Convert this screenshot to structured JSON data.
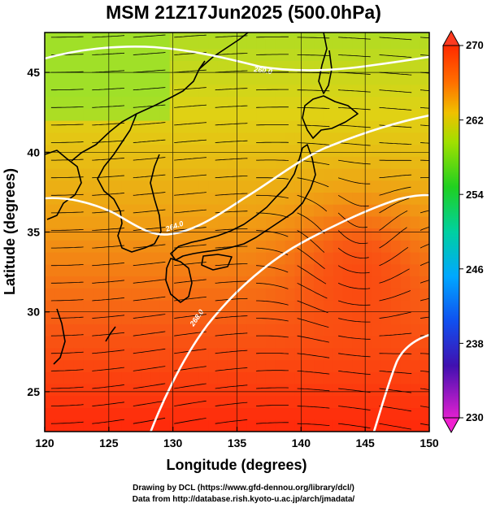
{
  "title": "MSM 21Z17Jun2025 (500.0hPa)",
  "chart_data": {
    "type": "heatmap",
    "title": "MSM 21Z17Jun2025 (500.0hPa)",
    "xlabel": "Longitude (degrees)",
    "ylabel": "Latitude  (degrees)",
    "xlim": [
      120,
      150
    ],
    "ylim": [
      22.5,
      47.5
    ],
    "x_ticks": [
      "120",
      "125",
      "130",
      "135",
      "140",
      "145",
      "150"
    ],
    "y_ticks": [
      "25",
      "30",
      "35",
      "40",
      "45"
    ],
    "grid": true,
    "colorbar": {
      "min": 230,
      "max": 270,
      "ticks": [
        "270",
        "262",
        "254",
        "246",
        "238",
        "230"
      ],
      "placement": "right"
    },
    "contour_labels": [
      "260.0",
      "264.0",
      "268.0"
    ],
    "overlays": [
      "streamlines",
      "coastlines",
      "contours"
    ]
  },
  "credits": {
    "line1": "Drawing by DCL (https://www.gfd-dennou.org/library/dcl/)",
    "line2": "Data from http://database.rish.kyoto-u.ac.jp/arch/jmadata/"
  },
  "colors": {
    "cold": "#a8e000",
    "mid": "#f0a010",
    "warm": "#ff3010",
    "contour": "#ffffff",
    "coast": "#000000"
  }
}
